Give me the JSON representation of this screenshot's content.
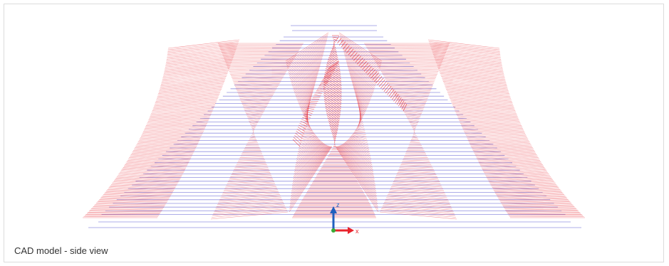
{
  "caption": "CAD model - side view",
  "axis_triad": {
    "z_label": "z",
    "x_label": "x"
  },
  "colors": {
    "blade": "#e8232c",
    "hub_lines": "#6b6bd6",
    "axis_z": "#1f5fbf",
    "axis_x": "#e8232c",
    "origin": "#3aaa35"
  }
}
